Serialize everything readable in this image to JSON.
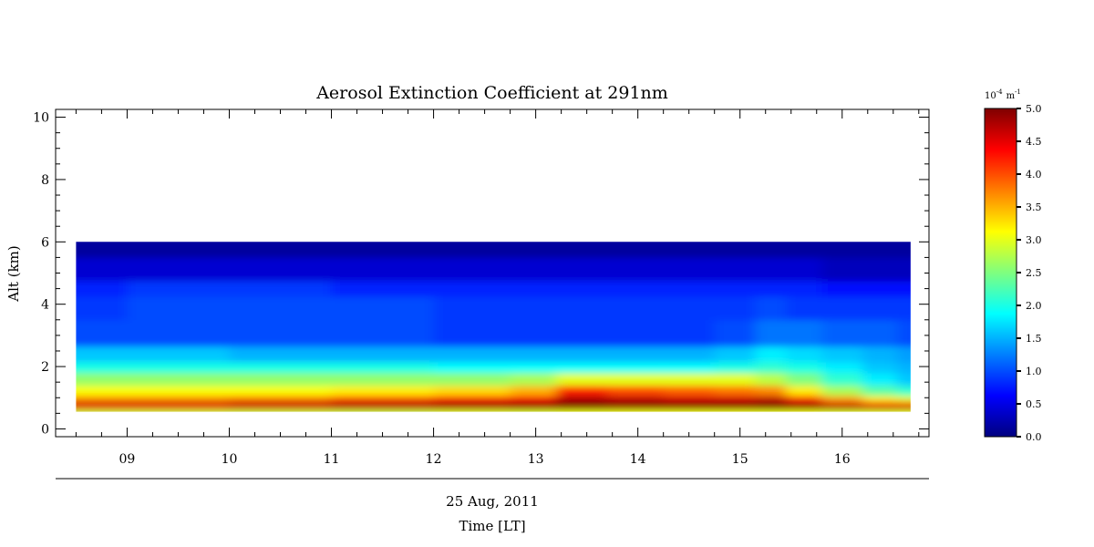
{
  "chart_data": {
    "type": "heatmap",
    "title": "Aerosol Extinction Coefficient at 291nm",
    "xlabel": "Time [LT]",
    "date_label": "25 Aug, 2011",
    "ylabel": "Alt (km)",
    "x_ticks": [
      "09",
      "10",
      "11",
      "12",
      "13",
      "14",
      "15",
      "16"
    ],
    "x_tick_values": [
      9,
      10,
      11,
      12,
      13,
      14,
      15,
      16
    ],
    "xlim": [
      8.3,
      16.85
    ],
    "x_data_range": [
      8.5,
      16.67
    ],
    "y_ticks": [
      "0",
      "2",
      "4",
      "6",
      "8",
      "10"
    ],
    "y_tick_values": [
      0,
      2,
      4,
      6,
      8,
      10
    ],
    "ylim": [
      -0.25,
      10.25
    ],
    "y_data_range": [
      0.55,
      6.0
    ],
    "altitude_profile_km": [
      0.55,
      0.7,
      0.8,
      0.95,
      1.2,
      1.6,
      2.0,
      2.3,
      3.0,
      4.0,
      4.5,
      5.0,
      6.0
    ],
    "time_columns": [
      8.5,
      9.5,
      10.5,
      11.5,
      12.5,
      13.0,
      13.4,
      14.0,
      14.5,
      15.0,
      15.3,
      15.6,
      16.0,
      16.4,
      16.67
    ],
    "extinction_values": [
      [
        2.8,
        4.4,
        4.7,
        3.7,
        3.1,
        2.6,
        2.0,
        1.6,
        1.0,
        0.9,
        0.8,
        0.4,
        0.15
      ],
      [
        2.8,
        4.4,
        4.7,
        3.7,
        3.1,
        2.6,
        2.0,
        1.6,
        1.0,
        1.0,
        0.9,
        0.4,
        0.15
      ],
      [
        2.8,
        4.5,
        4.8,
        3.8,
        3.1,
        2.6,
        2.0,
        1.5,
        1.0,
        1.0,
        0.9,
        0.4,
        0.15
      ],
      [
        2.8,
        4.6,
        4.9,
        4.0,
        3.2,
        2.6,
        2.0,
        1.5,
        1.0,
        1.0,
        0.8,
        0.4,
        0.15
      ],
      [
        2.9,
        4.7,
        5.0,
        4.2,
        3.3,
        2.6,
        1.9,
        1.5,
        0.9,
        0.9,
        0.8,
        0.4,
        0.15
      ],
      [
        2.9,
        4.8,
        5.0,
        4.4,
        3.5,
        2.7,
        1.9,
        1.5,
        0.9,
        0.9,
        0.8,
        0.4,
        0.15
      ],
      [
        3.0,
        5.0,
        5.0,
        4.8,
        4.2,
        3.0,
        1.9,
        1.5,
        0.9,
        0.9,
        0.8,
        0.4,
        0.15
      ],
      [
        3.0,
        4.9,
        5.0,
        4.7,
        4.0,
        3.0,
        1.9,
        1.5,
        0.9,
        0.9,
        0.8,
        0.4,
        0.15
      ],
      [
        3.0,
        4.9,
        5.0,
        4.6,
        3.9,
        3.0,
        1.9,
        1.5,
        0.9,
        0.9,
        0.8,
        0.4,
        0.15
      ],
      [
        3.0,
        4.9,
        5.0,
        4.6,
        3.8,
        3.0,
        2.0,
        1.6,
        1.0,
        0.9,
        0.8,
        0.4,
        0.15
      ],
      [
        3.0,
        5.0,
        5.0,
        4.7,
        3.7,
        2.8,
        2.1,
        1.8,
        1.2,
        1.0,
        0.8,
        0.4,
        0.15
      ],
      [
        3.0,
        4.9,
        4.9,
        4.2,
        3.2,
        2.5,
        2.0,
        1.7,
        1.2,
        0.9,
        0.8,
        0.4,
        0.15
      ],
      [
        2.9,
        4.8,
        4.6,
        3.6,
        2.7,
        2.1,
        1.8,
        1.6,
        1.1,
        0.9,
        0.7,
        0.3,
        0.15
      ],
      [
        2.9,
        4.7,
        4.4,
        3.2,
        2.3,
        1.8,
        1.6,
        1.5,
        1.1,
        0.9,
        0.7,
        0.3,
        0.15
      ],
      [
        2.9,
        4.7,
        4.3,
        3.0,
        2.1,
        1.6,
        1.5,
        1.4,
        1.0,
        0.9,
        0.7,
        0.3,
        0.15
      ]
    ],
    "colorbar": {
      "label_base": "10",
      "label_exp": "-4",
      "label_unit": "m",
      "label_unit_exp": "-1",
      "min": 0.0,
      "max": 5.0,
      "tick_values": [
        0.0,
        0.5,
        1.0,
        1.5,
        2.0,
        2.5,
        3.0,
        3.5,
        4.0,
        4.5,
        5.0
      ],
      "tick_labels": [
        "0.0",
        "0.5",
        "1.0",
        "1.5",
        "2.0",
        "2.5",
        "3.0",
        "3.5",
        "4.0",
        "4.5",
        "5.0"
      ],
      "colormap": "jet",
      "colormap_stops": [
        "#00007f",
        "#0000ff",
        "#007fff",
        "#00ffff",
        "#7fff7f",
        "#ffff00",
        "#ff7f00",
        "#ff0000",
        "#7f0000"
      ]
    },
    "grid": false,
    "legend": "colorbar-right"
  }
}
